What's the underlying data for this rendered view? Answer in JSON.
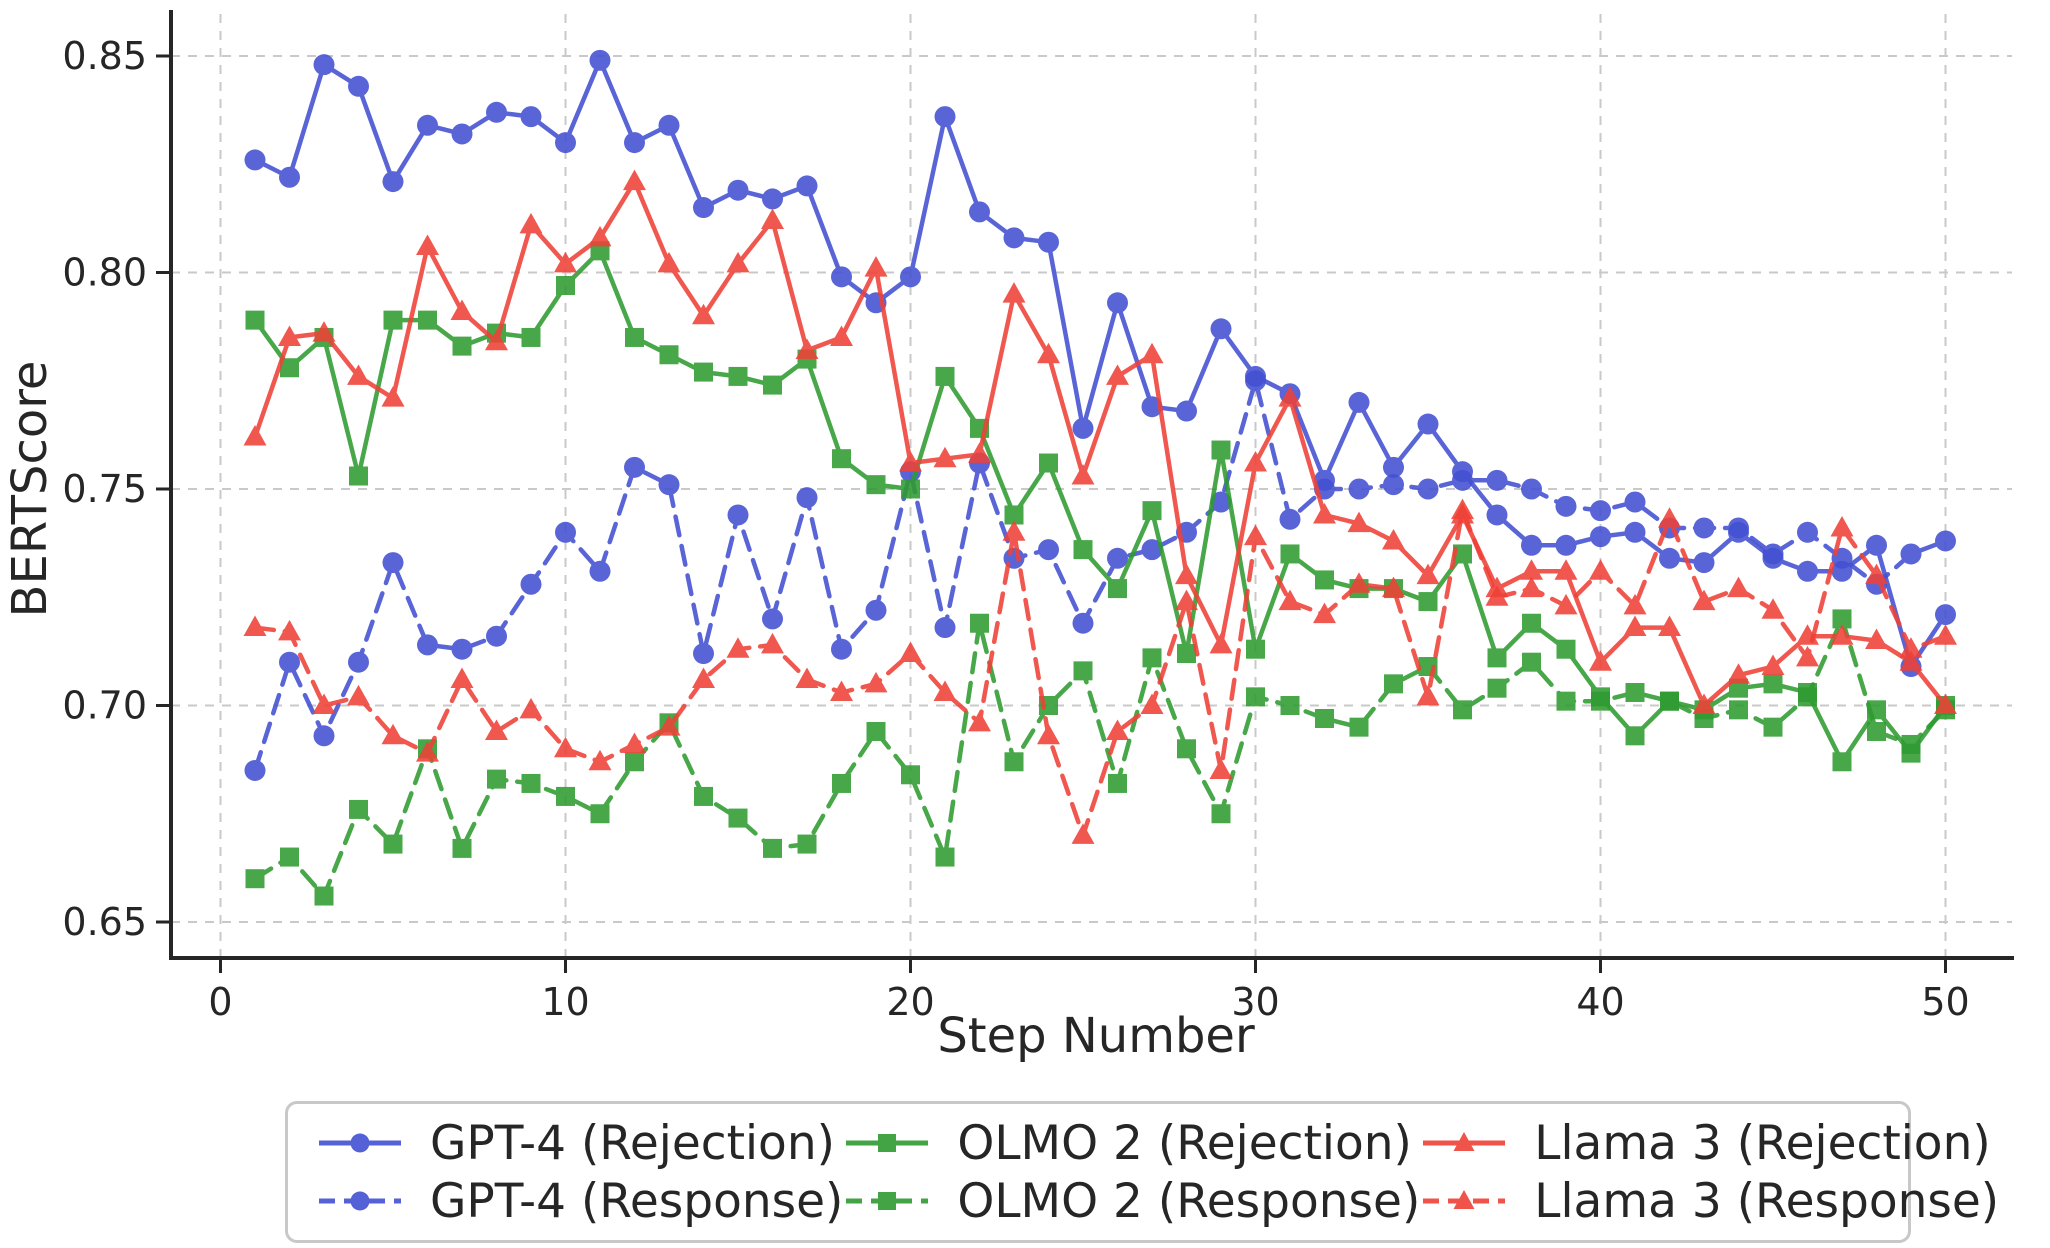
{
  "chart_data": {
    "type": "line",
    "title": "",
    "xlabel": "Step Number",
    "ylabel": "BERTScore",
    "x_ticks": [
      0,
      10,
      20,
      30,
      40,
      50
    ],
    "y_ticks": [
      0.65,
      0.7,
      0.75,
      0.8,
      0.85
    ],
    "xlim": [
      -1.4,
      51.9
    ],
    "ylim": [
      0.642,
      0.86
    ],
    "grid": true,
    "legend_position": "bottom",
    "x": [
      1,
      2,
      3,
      4,
      5,
      6,
      7,
      8,
      9,
      10,
      11,
      12,
      13,
      14,
      15,
      16,
      17,
      18,
      19,
      20,
      21,
      22,
      23,
      24,
      25,
      26,
      27,
      28,
      29,
      30,
      31,
      32,
      33,
      34,
      35,
      36,
      37,
      38,
      39,
      40,
      41,
      42,
      43,
      44,
      45,
      46,
      47,
      48,
      49,
      50
    ],
    "series": [
      {
        "name": "GPT-4 (Rejection)",
        "color": "#4350d2",
        "style": "solid",
        "marker": "circle",
        "values": [
          0.826,
          0.822,
          0.848,
          0.843,
          0.821,
          0.834,
          0.832,
          0.837,
          0.836,
          0.83,
          0.849,
          0.83,
          0.834,
          0.815,
          0.819,
          0.817,
          0.82,
          0.799,
          0.793,
          0.799,
          0.836,
          0.814,
          0.808,
          0.807,
          0.764,
          0.793,
          0.769,
          0.768,
          0.787,
          0.776,
          0.772,
          0.752,
          0.77,
          0.755,
          0.765,
          0.754,
          0.744,
          0.737,
          0.737,
          0.739,
          0.74,
          0.734,
          0.733,
          0.74,
          0.734,
          0.731,
          0.731,
          0.737,
          0.709,
          0.721
        ]
      },
      {
        "name": "GPT-4 (Response)",
        "color": "#4350d2",
        "style": "dashed",
        "marker": "circle",
        "values": [
          0.685,
          0.71,
          0.693,
          0.71,
          0.733,
          0.714,
          0.713,
          0.716,
          0.728,
          0.74,
          0.731,
          0.755,
          0.751,
          0.712,
          0.744,
          0.72,
          0.748,
          0.713,
          0.722,
          0.754,
          0.718,
          0.756,
          0.734,
          0.736,
          0.719,
          0.734,
          0.736,
          0.74,
          0.747,
          0.775,
          0.743,
          0.75,
          0.75,
          0.751,
          0.75,
          0.752,
          0.752,
          0.75,
          0.746,
          0.745,
          0.747,
          0.741,
          0.741,
          0.741,
          0.735,
          0.74,
          0.734,
          0.728,
          0.735,
          0.738
        ]
      },
      {
        "name": "OLMO 2 (Rejection)",
        "color": "#2e9b30",
        "style": "solid",
        "marker": "square",
        "values": [
          0.789,
          0.778,
          0.785,
          0.753,
          0.789,
          0.789,
          0.783,
          0.786,
          0.785,
          0.797,
          0.805,
          0.785,
          0.781,
          0.777,
          0.776,
          0.774,
          0.78,
          0.757,
          0.751,
          0.75,
          0.776,
          0.764,
          0.744,
          0.756,
          0.736,
          0.727,
          0.745,
          0.712,
          0.759,
          0.713,
          0.735,
          0.729,
          0.727,
          0.727,
          0.724,
          0.735,
          0.711,
          0.719,
          0.713,
          0.702,
          0.693,
          0.701,
          0.699,
          0.704,
          0.705,
          0.703,
          0.687,
          0.699,
          0.689,
          0.7
        ]
      },
      {
        "name": "OLMO 2 (Response)",
        "color": "#2e9b30",
        "style": "dashed",
        "marker": "square",
        "values": [
          0.66,
          0.665,
          0.656,
          0.676,
          0.668,
          0.69,
          0.667,
          0.683,
          0.682,
          0.679,
          0.675,
          0.687,
          0.696,
          0.679,
          0.674,
          0.667,
          0.668,
          0.682,
          0.694,
          0.684,
          0.665,
          0.719,
          0.687,
          0.7,
          0.708,
          0.682,
          0.711,
          0.69,
          0.675,
          0.702,
          0.7,
          0.697,
          0.695,
          0.705,
          0.709,
          0.699,
          0.704,
          0.71,
          0.701,
          0.701,
          0.703,
          0.701,
          0.697,
          0.699,
          0.695,
          0.702,
          0.72,
          0.694,
          0.691,
          0.699
        ]
      },
      {
        "name": "Llama 3 (Rejection)",
        "color": "#ef4137",
        "style": "solid",
        "marker": "triangle",
        "values": [
          0.762,
          0.785,
          0.786,
          0.776,
          0.771,
          0.806,
          0.791,
          0.784,
          0.811,
          0.802,
          0.808,
          0.821,
          0.802,
          0.79,
          0.802,
          0.812,
          0.782,
          0.785,
          0.801,
          0.756,
          0.757,
          0.758,
          0.795,
          0.781,
          0.753,
          0.776,
          0.781,
          0.73,
          0.714,
          0.756,
          0.771,
          0.744,
          0.742,
          0.738,
          0.73,
          0.744,
          0.727,
          0.731,
          0.731,
          0.71,
          0.718,
          0.718,
          0.7,
          0.707,
          0.709,
          0.716,
          0.716,
          0.715,
          0.71,
          0.7
        ]
      },
      {
        "name": "Llama 3 (Response)",
        "color": "#ef4137",
        "style": "dashed",
        "marker": "triangle",
        "values": [
          0.718,
          0.717,
          0.7,
          0.702,
          0.693,
          0.689,
          0.706,
          0.694,
          0.699,
          0.69,
          0.687,
          0.691,
          0.695,
          0.706,
          0.713,
          0.714,
          0.706,
          0.703,
          0.705,
          0.712,
          0.703,
          0.696,
          0.74,
          0.693,
          0.67,
          0.694,
          0.7,
          0.724,
          0.685,
          0.739,
          0.724,
          0.721,
          0.728,
          0.727,
          0.702,
          0.745,
          0.725,
          0.727,
          0.723,
          0.731,
          0.723,
          0.743,
          0.724,
          0.727,
          0.722,
          0.711,
          0.741,
          0.73,
          0.713,
          0.716
        ]
      }
    ]
  }
}
